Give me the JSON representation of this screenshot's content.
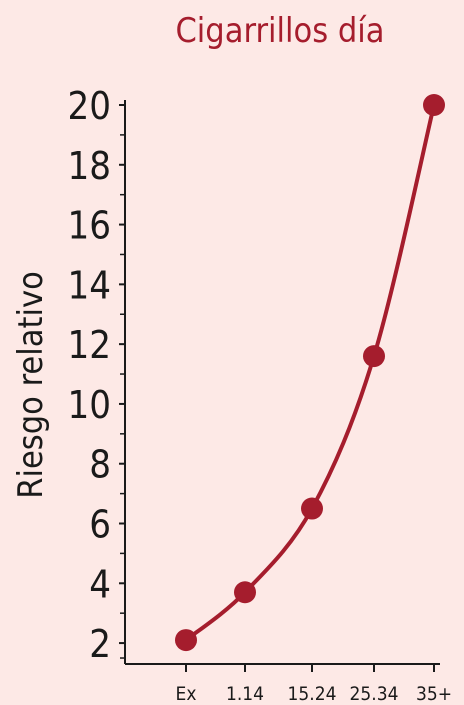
{
  "chart_data": {
    "type": "line",
    "title": "Cigarrillos día",
    "xlabel": "",
    "ylabel": "Riesgo relativo",
    "categories": [
      "Ex",
      "1.14",
      "15.24",
      "25.34",
      "35+"
    ],
    "values": [
      2.1,
      3.7,
      6.5,
      11.6,
      20.0
    ],
    "yticks": [
      2,
      4,
      6,
      8,
      10,
      12,
      14,
      16,
      18,
      20
    ],
    "ylim": [
      1.3,
      20.0
    ],
    "grid": false,
    "line_style": "smooth curve",
    "colors": {
      "background": "#fde9e6",
      "accent": "#a51d2d",
      "text": "#1a1a1a"
    }
  }
}
